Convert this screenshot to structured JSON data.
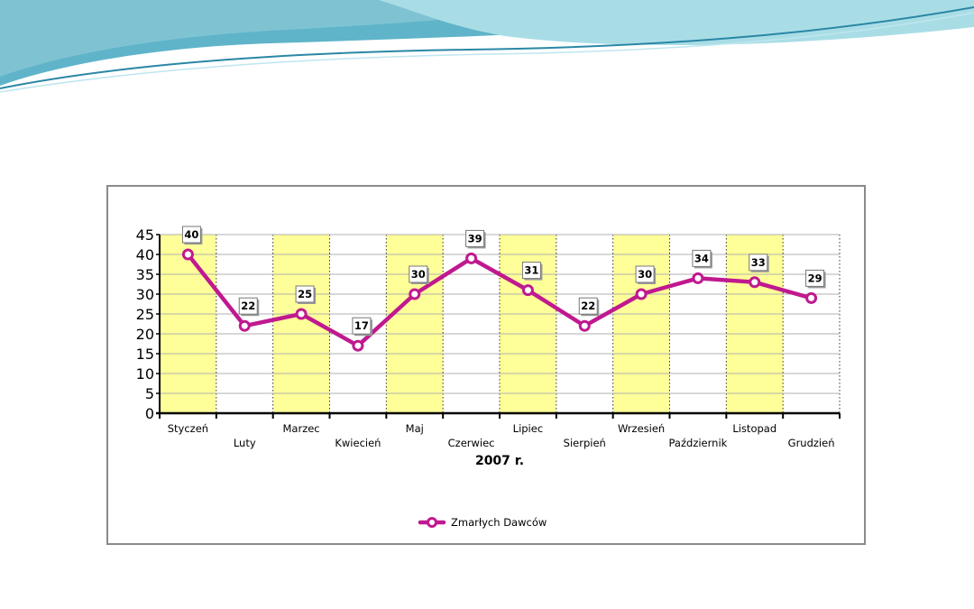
{
  "chart_data": {
    "type": "line",
    "categories": [
      "Styczeń",
      "Luty",
      "Marzec",
      "Kwiecień",
      "Maj",
      "Czerwiec",
      "Lipiec",
      "Sierpień",
      "Wrzesień",
      "Październik",
      "Listopad",
      "Grudzień"
    ],
    "series": [
      {
        "name": "Zmarłych Dawców",
        "values": [
          40,
          22,
          25,
          17,
          30,
          39,
          31,
          22,
          30,
          34,
          33,
          29
        ]
      }
    ],
    "title": "",
    "xlabel": "2007 r.",
    "ylabel": "",
    "ylim": [
      0,
      45
    ],
    "yticks": [
      "0",
      "5",
      "10",
      "15",
      "20",
      "25",
      "30",
      "35",
      "40",
      "45"
    ],
    "grid": true,
    "legend_position": "bottom",
    "colors": {
      "series": "#c0198f",
      "marker_fill": "#ffffff",
      "band_yellow": "#ffff99",
      "grid": "#b0b0b0"
    }
  }
}
